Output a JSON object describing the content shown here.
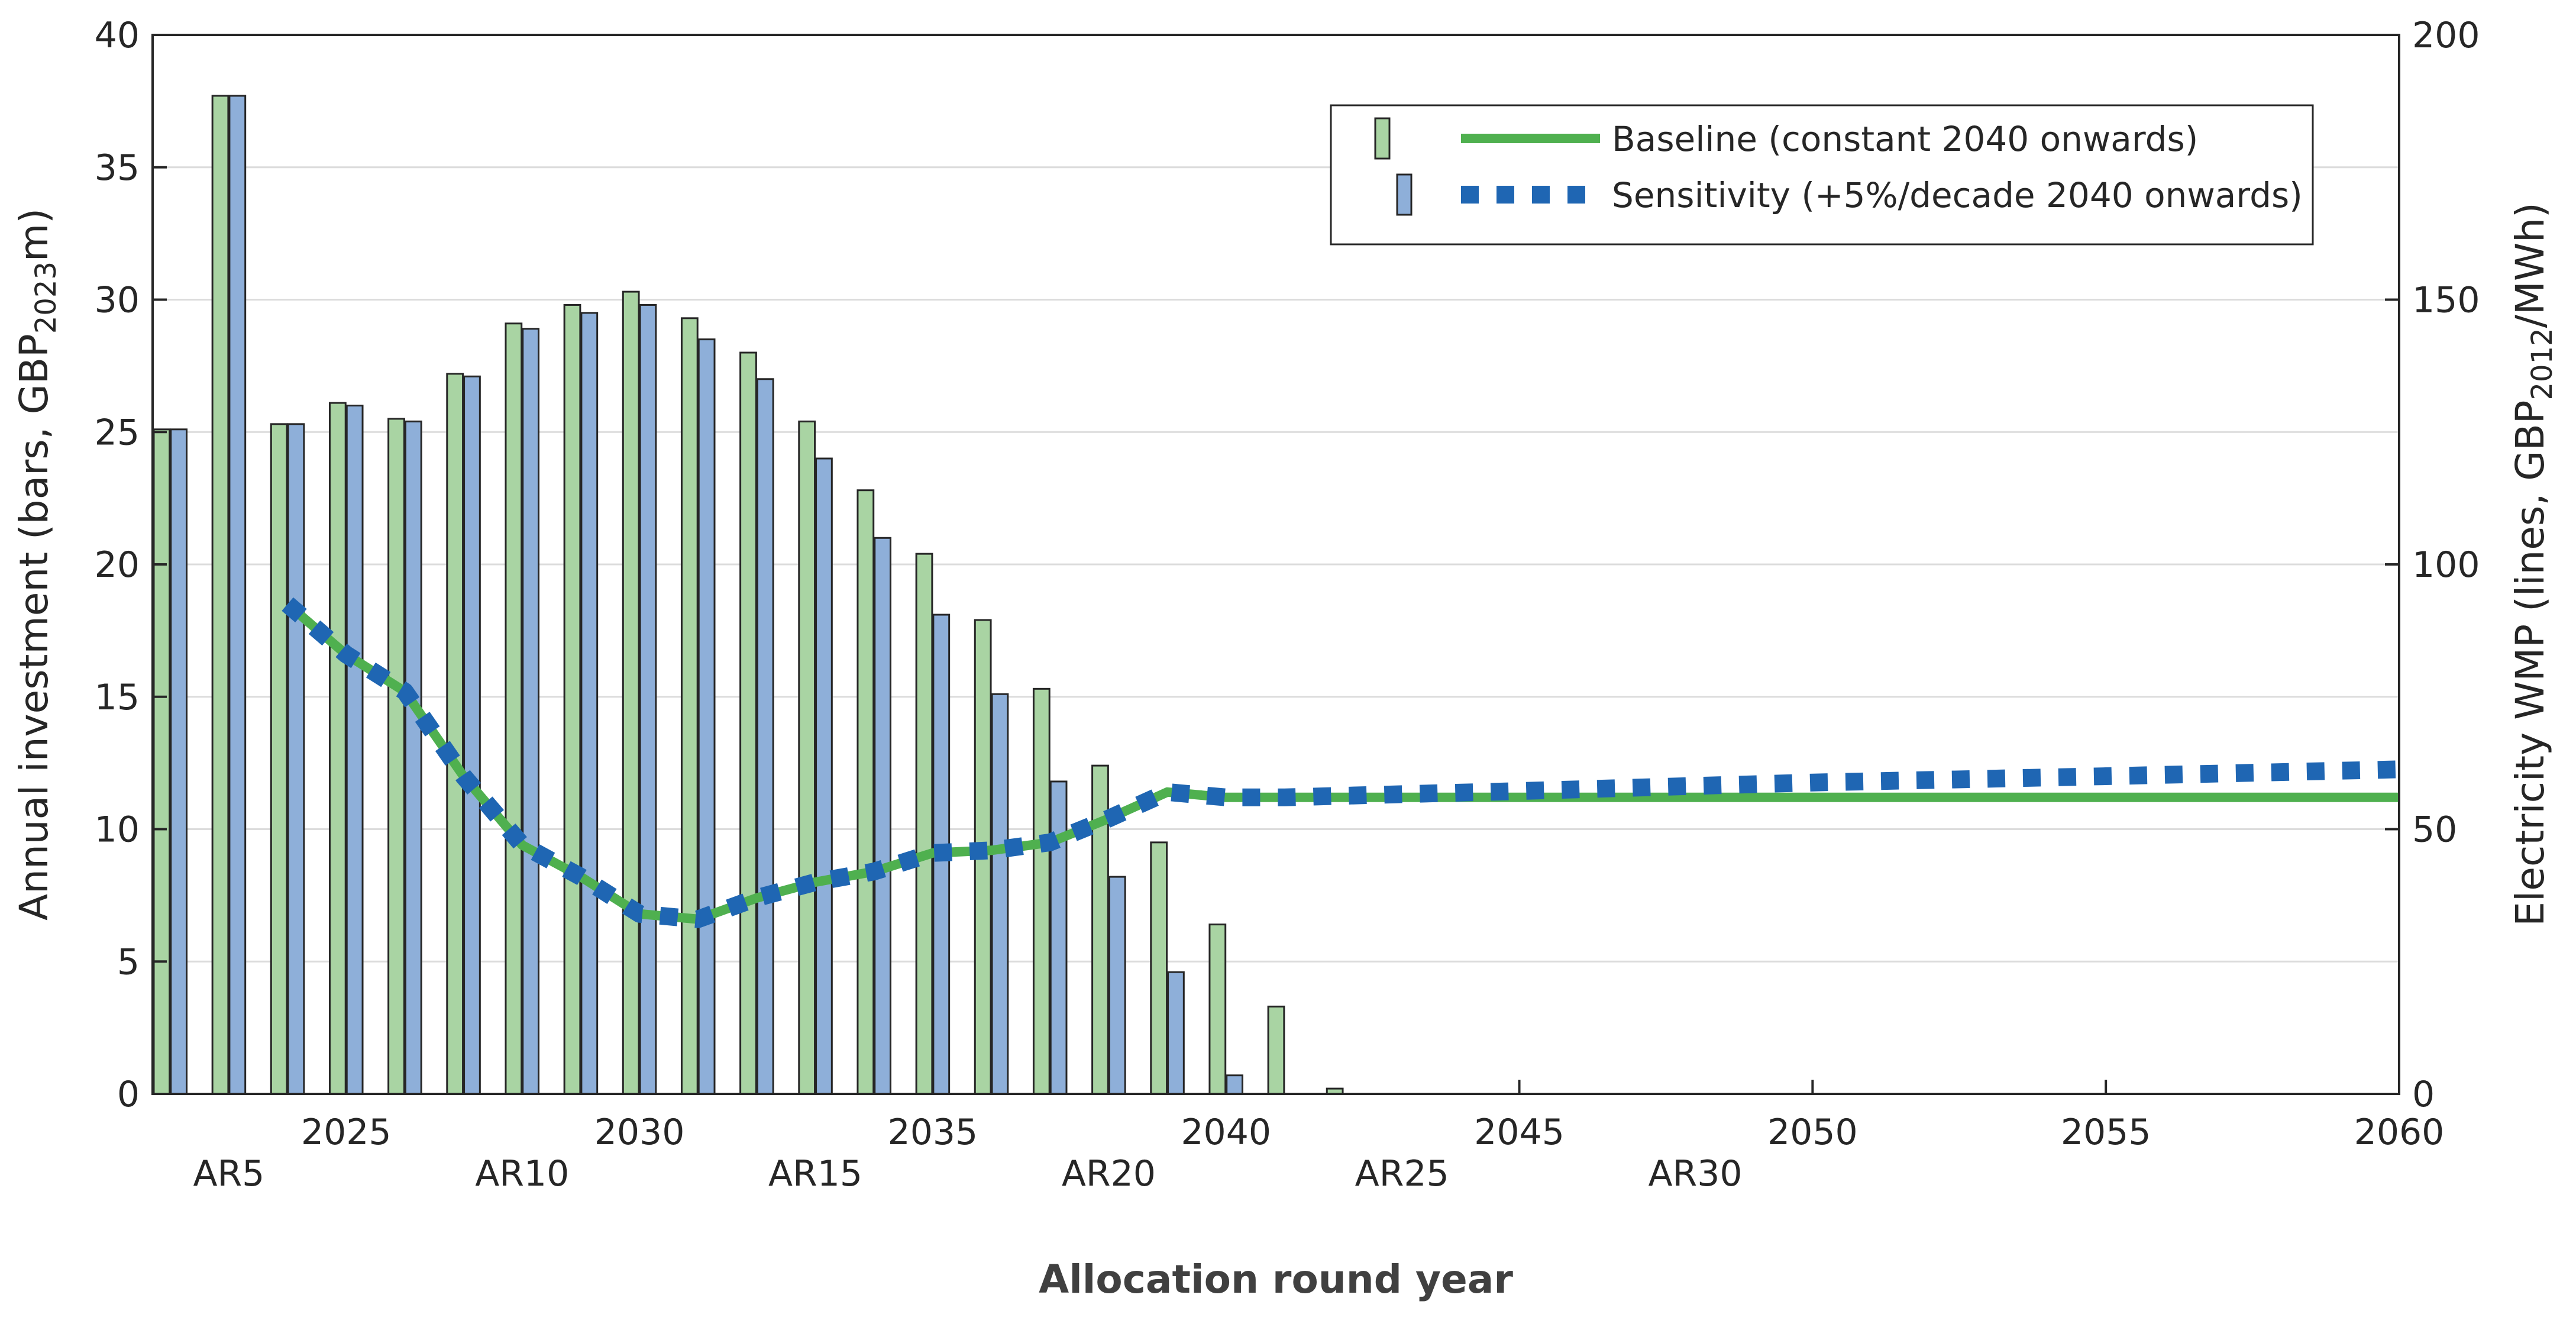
{
  "chart_data": {
    "type": "bar+line",
    "xlabel": "Allocation round year",
    "ylabel_left": "Annual investment (bars, GBP",
    "ylabel_left_sub": "2023",
    "ylabel_left_end": "m)",
    "ylabel_right": "Electricity WMP (lines, GBP",
    "ylabel_right_sub": "2012",
    "ylabel_right_end": "/MWh)",
    "xlim": [
      2021.7,
      2060
    ],
    "ylim_left": [
      0,
      40
    ],
    "ylim_right": [
      0,
      200
    ],
    "grid": true,
    "legend_position": "top-right",
    "x_ticks": [
      2025,
      2030,
      2035,
      2040,
      2045,
      2050,
      2055,
      2060
    ],
    "y_ticks_left": [
      0,
      5,
      10,
      15,
      20,
      25,
      30,
      35,
      40
    ],
    "y_ticks_right": [
      0,
      50,
      100,
      150,
      200
    ],
    "ar_labels": [
      {
        "label": "AR5",
        "x": 2023
      },
      {
        "label": "AR10",
        "x": 2028
      },
      {
        "label": "AR15",
        "x": 2033
      },
      {
        "label": "AR20",
        "x": 2038
      },
      {
        "label": "AR25",
        "x": 2043
      },
      {
        "label": "AR30",
        "x": 2048
      }
    ],
    "bar_categories": [
      2022,
      2023,
      2024,
      2025,
      2026,
      2027,
      2028,
      2029,
      2030,
      2031,
      2032,
      2033,
      2034,
      2035,
      2036,
      2037,
      2038,
      2039,
      2040,
      2041,
      2042
    ],
    "bar_series": [
      {
        "name": "Baseline",
        "color": "#a9d4a3",
        "values": [
          25.1,
          37.7,
          25.3,
          26.1,
          25.5,
          27.2,
          29.1,
          29.8,
          30.3,
          29.3,
          28.0,
          25.4,
          22.8,
          20.4,
          17.9,
          15.3,
          12.4,
          9.5,
          6.4,
          3.3,
          0.2
        ]
      },
      {
        "name": "Sensitivity",
        "color": "#8eafd9",
        "values": [
          25.1,
          37.7,
          25.3,
          26.0,
          25.4,
          27.1,
          28.9,
          29.5,
          29.8,
          28.5,
          27.0,
          24.0,
          21.0,
          18.1,
          15.1,
          11.8,
          8.2,
          4.6,
          0.7,
          0,
          0
        ]
      }
    ],
    "line_series": [
      {
        "name": "Baseline (constant 2040 onwards)",
        "color": "#4fb04f",
        "style": "solid",
        "x": [
          2024,
          2025,
          2026,
          2027,
          2028,
          2029,
          2030,
          2031,
          2032,
          2033,
          2034,
          2035,
          2036,
          2037,
          2038,
          2039,
          2040,
          2041,
          2042,
          2043,
          2045,
          2050,
          2055,
          2060
        ],
        "values": [
          92.5,
          83,
          76,
          60,
          47,
          41,
          34,
          33,
          37,
          40,
          42,
          45.5,
          46,
          47.5,
          52,
          57,
          56,
          56,
          56,
          56,
          56,
          56,
          56,
          56
        ]
      },
      {
        "name": "Sensitivity (+5%/decade 2040 onwards)",
        "color": "#1f66b3",
        "style": "dotted",
        "x": [
          2024,
          2025,
          2026,
          2027,
          2028,
          2029,
          2030,
          2031,
          2032,
          2033,
          2034,
          2035,
          2036,
          2037,
          2038,
          2039,
          2040,
          2041,
          2042,
          2043,
          2045,
          2050,
          2055,
          2060
        ],
        "values": [
          92.5,
          83,
          76,
          60,
          47,
          41,
          34,
          33,
          37,
          40,
          42,
          45.5,
          46,
          47.5,
          52,
          57,
          56,
          56,
          56.3,
          56.6,
          57.2,
          58.8,
          60.0,
          61.3
        ]
      }
    ],
    "legend": {
      "baseline_label": "Baseline (constant 2040 onwards)",
      "sensitivity_label": "Sensitivity (+5%/decade 2040 onwards)"
    }
  }
}
